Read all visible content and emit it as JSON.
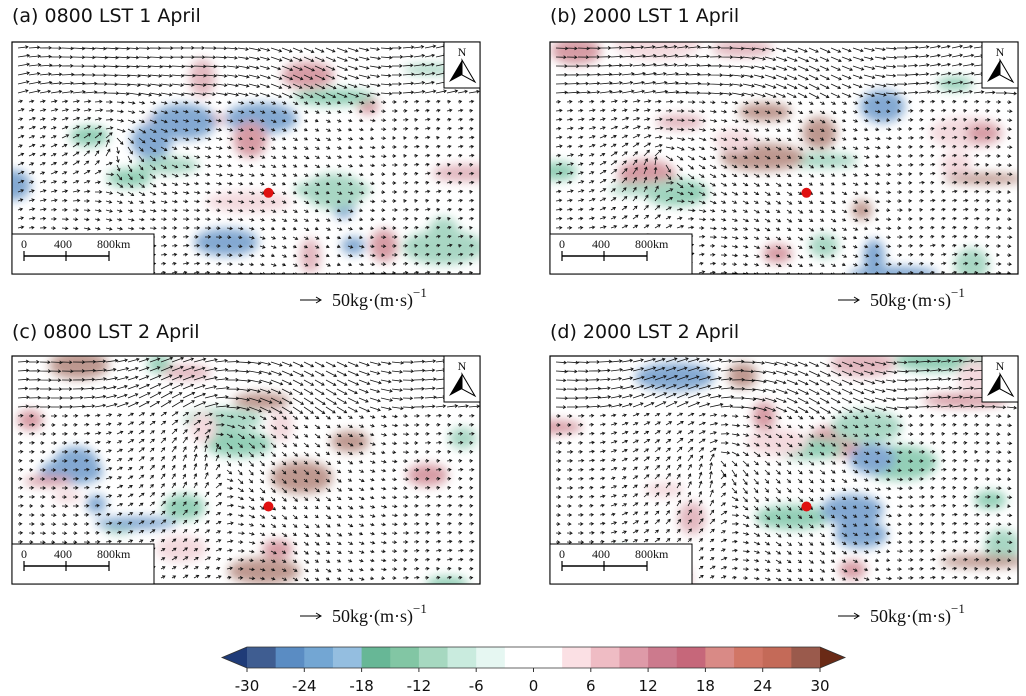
{
  "panels": [
    {
      "title": "(a) 0800 LST 1 April"
    },
    {
      "title": "(b)  2000 LST 1 April"
    },
    {
      "title": "(c) 0800 LST 2 April"
    },
    {
      "title": "(d) 2000 LST 2 April"
    }
  ],
  "north": "N",
  "scale_bar_labels": [
    "0",
    "400",
    "800km"
  ],
  "vector_label": "50kg·(m·s)",
  "vector_exponent": "−1",
  "colorbar": {
    "range": [
      -30,
      30
    ],
    "ticks": [
      -30,
      -24,
      -18,
      -12,
      -6,
      0,
      6,
      12,
      18,
      24,
      30
    ],
    "colors": [
      "#3f5d91",
      "#5a8cc3",
      "#73a6d3",
      "#94bee0",
      "#67b796",
      "#82c6a4",
      "#a6d8c0",
      "#c9ebde",
      "#e6f7f2",
      "#ffffff",
      "#ffffff",
      "#fbe0e4",
      "#efbcc4",
      "#de9aa8",
      "#cc7a8d",
      "#c6677a",
      "#d98a86",
      "#d17666",
      "#c46a58",
      "#9a5a4c"
    ],
    "extend_colors": [
      "#1f3b78",
      "#6a2a16"
    ]
  }
}
